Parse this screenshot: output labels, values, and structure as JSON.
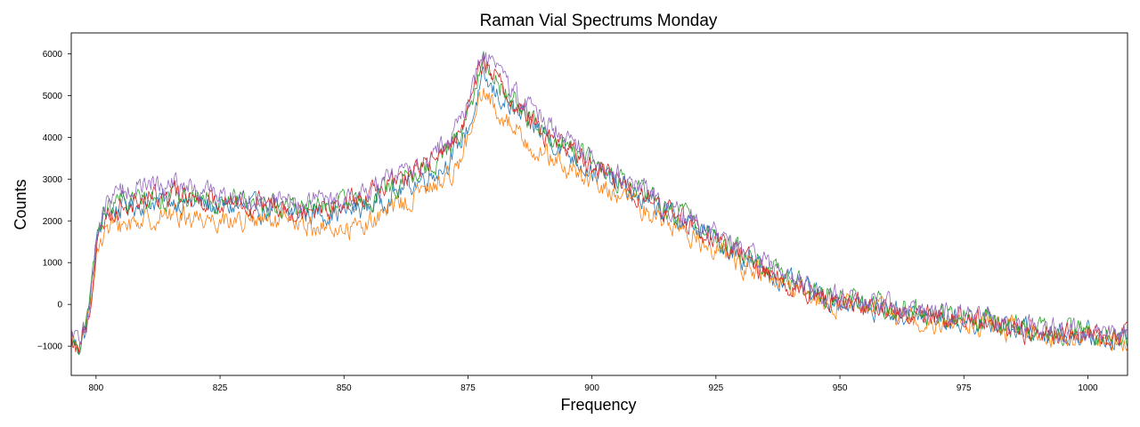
{
  "chart_data": {
    "type": "line",
    "title": "Raman Vial Spectrums Monday",
    "xlabel": "Frequency",
    "ylabel": "Counts",
    "xlim": [
      795,
      1008
    ],
    "ylim": [
      -1700,
      6500
    ],
    "xticks": [
      800,
      825,
      850,
      875,
      900,
      925,
      950,
      975,
      1000
    ],
    "yticks": [
      -1000,
      0,
      1000,
      2000,
      3000,
      4000,
      5000,
      6000
    ],
    "grid": false,
    "legend": "none",
    "x": [
      795,
      796.5,
      798,
      799,
      800,
      802,
      805,
      810,
      815,
      820,
      825,
      830,
      835,
      840,
      845,
      850,
      855,
      860,
      865,
      870,
      873,
      876,
      877,
      878,
      879,
      880,
      882,
      885,
      888,
      890,
      895,
      900,
      905,
      910,
      915,
      920,
      925,
      930,
      935,
      940,
      945,
      950,
      955,
      960,
      965,
      970,
      975,
      980,
      985,
      990,
      995,
      1000,
      1005,
      1008
    ],
    "series": [
      {
        "color": "#1f77b4",
        "noise": 220,
        "values": [
          -900,
          -1000,
          -600,
          200,
          1500,
          2200,
          2300,
          2450,
          2500,
          2400,
          2350,
          2300,
          2250,
          2200,
          2200,
          2200,
          2350,
          2650,
          2950,
          3300,
          3750,
          4500,
          5000,
          5300,
          5250,
          5100,
          4900,
          4500,
          4300,
          4100,
          3650,
          3200,
          2900,
          2500,
          2200,
          1900,
          1550,
          1150,
          800,
          500,
          250,
          50,
          -50,
          -150,
          -250,
          -350,
          -400,
          -450,
          -550,
          -650,
          -700,
          -750,
          -800,
          -850
        ]
      },
      {
        "color": "#ff7f0e",
        "noise": 220,
        "values": [
          -950,
          -1050,
          -700,
          100,
          1350,
          1750,
          1900,
          2050,
          2150,
          2100,
          2050,
          2000,
          1950,
          1900,
          1850,
          1800,
          1950,
          2300,
          2650,
          2950,
          3400,
          4200,
          4700,
          5000,
          4950,
          4750,
          4500,
          4150,
          3800,
          3600,
          3250,
          2900,
          2650,
          2300,
          2000,
          1650,
          1350,
          1000,
          650,
          350,
          150,
          0,
          -100,
          -200,
          -300,
          -400,
          -450,
          -500,
          -600,
          -700,
          -750,
          -800,
          -850,
          -850
        ]
      },
      {
        "color": "#2ca02c",
        "noise": 220,
        "values": [
          -850,
          -950,
          -550,
          250,
          1550,
          2250,
          2450,
          2550,
          2600,
          2550,
          2500,
          2450,
          2400,
          2350,
          2350,
          2350,
          2500,
          2800,
          3150,
          3550,
          4000,
          4900,
          5400,
          5700,
          5650,
          5450,
          5150,
          4750,
          4400,
          4200,
          3800,
          3400,
          3050,
          2650,
          2300,
          2000,
          1650,
          1250,
          900,
          600,
          350,
          150,
          50,
          -50,
          -150,
          -250,
          -300,
          -400,
          -500,
          -600,
          -650,
          -700,
          -750,
          -750
        ]
      },
      {
        "color": "#d62728",
        "noise": 220,
        "values": [
          -900,
          -1000,
          -650,
          150,
          1450,
          2100,
          2350,
          2550,
          2600,
          2550,
          2500,
          2450,
          2400,
          2350,
          2350,
          2400,
          2600,
          2900,
          3250,
          3650,
          4100,
          5000,
          5500,
          5800,
          5750,
          5550,
          5200,
          4750,
          4400,
          4150,
          3750,
          3350,
          3000,
          2600,
          2250,
          1900,
          1550,
          1150,
          800,
          500,
          250,
          100,
          0,
          -100,
          -200,
          -300,
          -350,
          -450,
          -550,
          -650,
          -700,
          -750,
          -800,
          -800
        ]
      },
      {
        "color": "#9467bd",
        "noise": 220,
        "values": [
          -800,
          -900,
          -500,
          300,
          1600,
          2400,
          2750,
          2850,
          2850,
          2750,
          2650,
          2550,
          2500,
          2450,
          2450,
          2500,
          2700,
          3000,
          3350,
          3800,
          4300,
          5200,
          5700,
          5950,
          5900,
          5700,
          5400,
          5000,
          4700,
          4450,
          4000,
          3550,
          3150,
          2750,
          2400,
          2050,
          1700,
          1300,
          950,
          600,
          350,
          150,
          50,
          -50,
          -150,
          -250,
          -300,
          -400,
          -500,
          -600,
          -650,
          -700,
          -750,
          -750
        ]
      }
    ]
  }
}
